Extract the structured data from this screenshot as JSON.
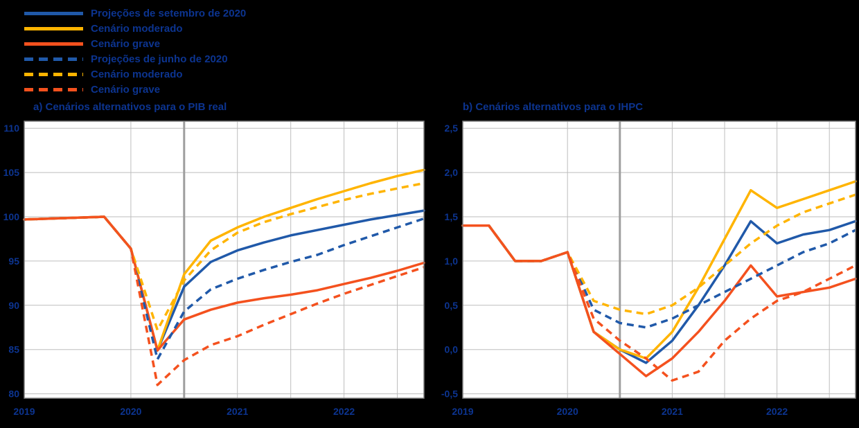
{
  "colors": {
    "background": "#000000",
    "text": "#0c3490",
    "plot_bg": "#ffffff",
    "grid": "#bdbdbd",
    "plot_border": "#7f7f7f",
    "projection_line": "#9e9e9e",
    "blue": "#2059a9",
    "yellow": "#ffb400",
    "orange": "#f4511e"
  },
  "legend": {
    "items": [
      {
        "label": "Projeções de setembro de 2020",
        "color": "#2059a9",
        "style": "solid"
      },
      {
        "label": "Cenário moderado",
        "color": "#ffb400",
        "style": "solid"
      },
      {
        "label": "Cenário grave",
        "color": "#f4511e",
        "style": "solid"
      },
      {
        "label": "Projeções de junho de 2020",
        "color": "#2059a9",
        "style": "dashed"
      },
      {
        "label": "Cenário moderado",
        "color": "#ffb400",
        "style": "dashed"
      },
      {
        "label": "Cenário grave",
        "color": "#f4511e",
        "style": "dashed"
      }
    ]
  },
  "chart_data": [
    {
      "type": "line",
      "title": "a) Cenários alternativos para o PIB real",
      "x": [
        "2019Q1",
        "2019Q2",
        "2019Q3",
        "2019Q4",
        "2020Q1",
        "2020Q2",
        "2020Q3",
        "2020Q4",
        "2021Q1",
        "2021Q2",
        "2021Q3",
        "2021Q4",
        "2022Q1",
        "2022Q2",
        "2022Q3",
        "2022Q4"
      ],
      "x_tick_labels": [
        "2019",
        "2020",
        "2021",
        "2022"
      ],
      "x_tick_positions": [
        0,
        4,
        8,
        12
      ],
      "x_gridline_positions": [
        4,
        6,
        8,
        10,
        12,
        14
      ],
      "projection_start_index": 6,
      "ylim": [
        79.5,
        110.8
      ],
      "yticks": [
        80,
        85,
        90,
        95,
        100,
        105,
        110
      ],
      "ytick_labels": [
        "80",
        "85",
        "90",
        "95",
        "100",
        "105",
        "110"
      ],
      "grid": true,
      "legend_position": "top-left-outside",
      "series": [
        {
          "name": "Projeções de setembro de 2020",
          "style": "solid",
          "color": "#2059a9",
          "values": [
            99.7,
            99.8,
            99.9,
            100.0,
            96.4,
            84.9,
            92.1,
            94.9,
            96.2,
            97.1,
            97.9,
            98.5,
            99.1,
            99.7,
            100.2,
            100.7
          ]
        },
        {
          "name": "Cenário moderado",
          "style": "solid",
          "color": "#ffb400",
          "values": [
            99.7,
            99.8,
            99.9,
            100.0,
            96.4,
            84.9,
            93.5,
            97.3,
            98.8,
            100.0,
            101.0,
            102.0,
            102.9,
            103.8,
            104.6,
            105.3
          ]
        },
        {
          "name": "Cenário grave",
          "style": "solid",
          "color": "#f4511e",
          "values": [
            99.7,
            99.8,
            99.9,
            100.0,
            96.4,
            84.9,
            88.4,
            89.5,
            90.3,
            90.8,
            91.2,
            91.7,
            92.4,
            93.1,
            93.9,
            94.8
          ]
        },
        {
          "name": "Projeções de junho de 2020",
          "style": "dashed",
          "color": "#2059a9",
          "values": [
            99.7,
            99.8,
            99.9,
            100.0,
            96.4,
            83.9,
            89.3,
            91.8,
            93.0,
            94.0,
            94.9,
            95.7,
            96.8,
            97.8,
            98.8,
            99.8
          ]
        },
        {
          "name": "Cenário moderado",
          "style": "dashed",
          "color": "#ffb400",
          "values": [
            99.7,
            99.8,
            99.9,
            100.0,
            96.4,
            87.2,
            92.8,
            96.2,
            98.2,
            99.4,
            100.3,
            101.1,
            101.9,
            102.6,
            103.2,
            103.8
          ]
        },
        {
          "name": "Cenário grave",
          "style": "dashed",
          "color": "#f4511e",
          "values": [
            99.7,
            99.8,
            99.9,
            100.0,
            96.4,
            81.0,
            83.8,
            85.5,
            86.5,
            87.8,
            89.0,
            90.2,
            91.3,
            92.3,
            93.3,
            94.3
          ]
        }
      ]
    },
    {
      "type": "line",
      "title": "b) Cenários alternativos para o IHPC",
      "x": [
        "2019Q1",
        "2019Q2",
        "2019Q3",
        "2019Q4",
        "2020Q1",
        "2020Q2",
        "2020Q3",
        "2020Q4",
        "2021Q1",
        "2021Q2",
        "2021Q3",
        "2021Q4",
        "2022Q1",
        "2022Q2",
        "2022Q3",
        "2022Q4"
      ],
      "x_tick_labels": [
        "2019",
        "2020",
        "2021",
        "2022"
      ],
      "x_tick_positions": [
        0,
        4,
        8,
        12
      ],
      "x_gridline_positions": [
        4,
        6,
        8,
        10,
        12,
        14
      ],
      "projection_start_index": 6,
      "ylim": [
        -0.55,
        2.58
      ],
      "yticks": [
        2.5,
        2.0,
        1.5,
        1.0,
        0.5,
        0.0,
        -0.5
      ],
      "ytick_labels": [
        "2,5",
        "2,0",
        "1,5",
        "1,0",
        "0,5",
        "0,0",
        "-0,5"
      ],
      "grid": true,
      "legend_position": "top-left-outside",
      "series": [
        {
          "name": "Projeções de setembro de 2020",
          "style": "solid",
          "color": "#2059a9",
          "values": [
            1.4,
            1.4,
            1.0,
            1.0,
            1.1,
            0.2,
            0.0,
            -0.15,
            0.1,
            0.5,
            0.95,
            1.45,
            1.2,
            1.3,
            1.35,
            1.45
          ]
        },
        {
          "name": "Cenário moderado",
          "style": "solid",
          "color": "#ffb400",
          "values": [
            1.4,
            1.4,
            1.0,
            1.0,
            1.1,
            0.2,
            0.0,
            -0.1,
            0.2,
            0.7,
            1.25,
            1.8,
            1.6,
            1.7,
            1.8,
            1.9
          ]
        },
        {
          "name": "Cenário grave",
          "style": "solid",
          "color": "#f4511e",
          "values": [
            1.4,
            1.4,
            1.0,
            1.0,
            1.1,
            0.2,
            -0.05,
            -0.3,
            -0.1,
            0.2,
            0.55,
            0.95,
            0.6,
            0.65,
            0.7,
            0.8
          ]
        },
        {
          "name": "Projeções de junho de 2020",
          "style": "dashed",
          "color": "#2059a9",
          "values": [
            1.4,
            1.4,
            1.0,
            1.0,
            1.1,
            0.45,
            0.3,
            0.25,
            0.35,
            0.5,
            0.65,
            0.8,
            0.95,
            1.1,
            1.2,
            1.35
          ]
        },
        {
          "name": "Cenário moderado",
          "style": "dashed",
          "color": "#ffb400",
          "values": [
            1.4,
            1.4,
            1.0,
            1.0,
            1.1,
            0.55,
            0.45,
            0.4,
            0.5,
            0.7,
            0.95,
            1.2,
            1.4,
            1.55,
            1.65,
            1.75
          ]
        },
        {
          "name": "Cenário grave",
          "style": "dashed",
          "color": "#f4511e",
          "values": [
            1.4,
            1.4,
            1.0,
            1.0,
            1.1,
            0.35,
            0.1,
            -0.1,
            -0.35,
            -0.25,
            0.1,
            0.35,
            0.55,
            0.65,
            0.8,
            0.95
          ]
        }
      ]
    }
  ]
}
